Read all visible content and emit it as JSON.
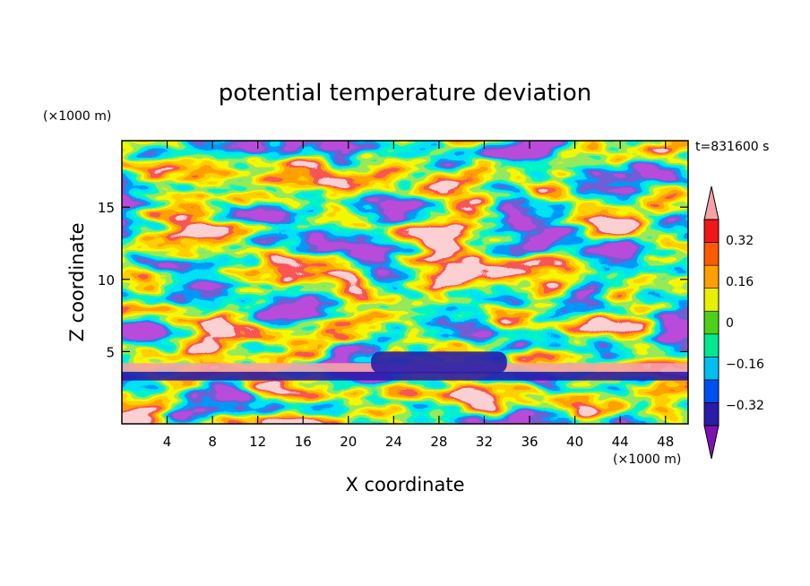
{
  "chart_data": {
    "type": "heatmap",
    "title": "potential temperature deviation",
    "xlabel": "X coordinate",
    "ylabel": "Z coordinate",
    "x_unit": "(×1000 m)",
    "y_unit": "(×1000 m)",
    "time_label": "t=831600 s",
    "xlim": [
      0,
      50
    ],
    "ylim": [
      0,
      19.6
    ],
    "xticks": [
      "4",
      "8",
      "12",
      "16",
      "20",
      "24",
      "28",
      "32",
      "36",
      "40",
      "44",
      "48"
    ],
    "yticks": [
      "5",
      "10",
      "15"
    ],
    "colorbar": {
      "levels": [
        -0.4,
        -0.32,
        -0.24,
        -0.16,
        -0.08,
        0,
        0.08,
        0.16,
        0.24,
        0.32,
        0.4
      ],
      "labels": [
        "0.32",
        "0.16",
        "0",
        "−0.16",
        "−0.32"
      ],
      "label_values": [
        0.32,
        0.16,
        0,
        -0.16,
        -0.32
      ],
      "colors": [
        "#7c12b4",
        "#2a1ca8",
        "#0050f0",
        "#00bff0",
        "#00e890",
        "#4ed01a",
        "#e8ef00",
        "#ffa000",
        "#ff5a00",
        "#f01818",
        "#f4a2a6"
      ],
      "extend": "both"
    },
    "features": [
      {
        "name": "stable layer (positive)",
        "z_range": [
          3.6,
          4.2
        ],
        "value": 0.42
      },
      {
        "name": "layer below (negative)",
        "z_range": [
          3.0,
          3.6
        ],
        "value": -0.36
      },
      {
        "name": "mid-level negative band",
        "x_range": [
          22,
          34
        ],
        "z_range": [
          3.5,
          5.0
        ],
        "value": -0.38
      }
    ]
  }
}
